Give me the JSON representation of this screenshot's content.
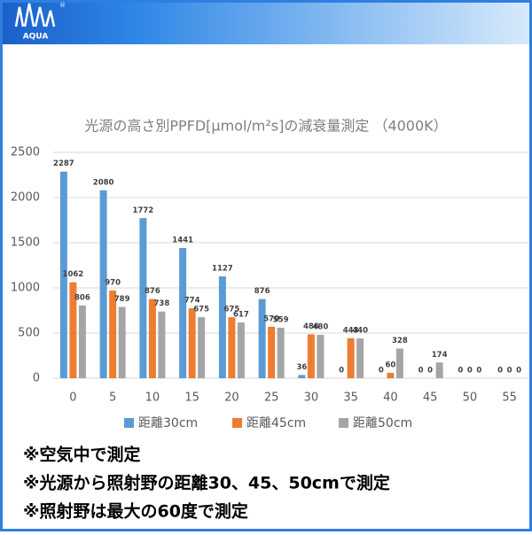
{
  "logo": {
    "text": "AQUA",
    "mark": "®"
  },
  "chart_data": {
    "type": "bar",
    "title": "光源の高さ別PPFD[μmol/m²s]の減衰量測定 （4000K）",
    "categories": [
      "0",
      "5",
      "10",
      "15",
      "20",
      "25",
      "30",
      "35",
      "40",
      "45",
      "50",
      "55"
    ],
    "series": [
      {
        "name": "距離30cm",
        "color": "#5b9bd5",
        "values": [
          2287,
          2080,
          1772,
          1441,
          1127,
          876,
          36,
          0,
          0,
          0,
          0,
          0
        ]
      },
      {
        "name": "距離45cm",
        "color": "#ed7d31",
        "values": [
          1062,
          970,
          876,
          774,
          675,
          570,
          486,
          443,
          60,
          0,
          0,
          0
        ]
      },
      {
        "name": "距離50cm",
        "color": "#a5a5a5",
        "values": [
          806,
          789,
          738,
          675,
          617,
          559,
          480,
          440,
          328,
          174,
          0,
          0
        ]
      }
    ],
    "ylim": [
      0,
      2500
    ],
    "yticks": [
      0,
      500,
      1000,
      1500,
      2000,
      2500
    ],
    "grid": true,
    "legend": "bottom"
  },
  "notes": [
    "※空気中で測定",
    "※光源から照射野の距離30、45、50cmで測定",
    "※照射野は最大の60度で測定"
  ]
}
